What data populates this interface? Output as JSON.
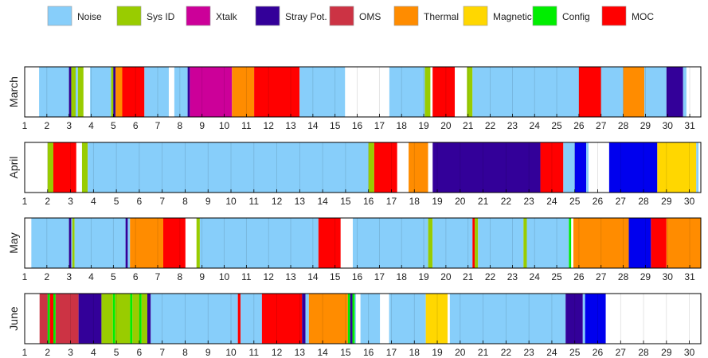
{
  "chart_data": {
    "type": "timeline",
    "categories": [
      {
        "key": "noise",
        "name": "Noise",
        "color": "#87CEFA"
      },
      {
        "key": "sysid",
        "name": "Sys ID",
        "color": "#99CC00"
      },
      {
        "key": "xtalk",
        "name": "Xtalk",
        "color": "#CC0099"
      },
      {
        "key": "stray",
        "name": "Stray Pot.",
        "color": "#330099"
      },
      {
        "key": "oms",
        "name": "OMS",
        "color": "#CC3344"
      },
      {
        "key": "thermal",
        "name": "Thermal",
        "color": "#FF8C00"
      },
      {
        "key": "magnetic",
        "name": "Magnetic",
        "color": "#FFD700"
      },
      {
        "key": "config",
        "name": "Config",
        "color": "#00EE00"
      },
      {
        "key": "moc",
        "name": "MOC",
        "color": "#FF0000"
      },
      {
        "key": "blue",
        "name": "",
        "color": "#0000EE"
      }
    ],
    "months": [
      {
        "name": "March",
        "days": 31,
        "xlim": [
          1,
          31.5
        ],
        "ticks": [
          "1",
          "2",
          "3",
          "4",
          "5",
          "6",
          "7",
          "8",
          "9",
          "10",
          "11",
          "12",
          "13",
          "14",
          "15",
          "16",
          "17",
          "18",
          "19",
          "20",
          "21",
          "22",
          "23",
          "24",
          "25",
          "26",
          "27",
          "28",
          "29",
          "30",
          "31"
        ],
        "segments": [
          [
            "noise",
            1.65,
            3.0
          ],
          [
            "stray",
            3.0,
            3.1
          ],
          [
            "sysid",
            3.1,
            3.3
          ],
          [
            "noise",
            3.3,
            3.4
          ],
          [
            "sysid",
            3.4,
            3.65
          ],
          [
            "noise",
            3.95,
            4.9
          ],
          [
            "sysid",
            4.9,
            5.0
          ],
          [
            "stray",
            5.0,
            5.1
          ],
          [
            "thermal",
            5.1,
            5.4
          ],
          [
            "moc",
            5.4,
            6.4
          ],
          [
            "noise",
            6.4,
            7.5
          ],
          [
            "noise",
            7.75,
            8.35
          ],
          [
            "stray",
            8.35,
            8.45
          ],
          [
            "xtalk",
            8.45,
            10.35
          ],
          [
            "thermal",
            10.35,
            11.35
          ],
          [
            "moc",
            11.35,
            13.4
          ],
          [
            "noise",
            13.4,
            15.45
          ],
          [
            "noise",
            17.45,
            19.05
          ],
          [
            "sysid",
            19.05,
            19.3
          ],
          [
            "moc",
            19.4,
            20.4
          ],
          [
            "sysid",
            20.95,
            21.2
          ],
          [
            "noise",
            21.2,
            26.0
          ],
          [
            "moc",
            26.0,
            27.0
          ],
          [
            "noise",
            27.0,
            28.0
          ],
          [
            "thermal",
            28.0,
            28.95
          ],
          [
            "noise",
            28.95,
            29.95
          ],
          [
            "stray",
            29.95,
            30.7
          ],
          [
            "noise",
            30.7,
            30.85
          ]
        ]
      },
      {
        "name": "April",
        "days": 30,
        "xlim": [
          1,
          30.5
        ],
        "ticks": [
          "1",
          "2",
          "3",
          "4",
          "5",
          "6",
          "7",
          "8",
          "9",
          "10",
          "11",
          "12",
          "13",
          "14",
          "15",
          "16",
          "17",
          "18",
          "19",
          "20",
          "21",
          "22",
          "23",
          "24",
          "25",
          "26",
          "27",
          "28",
          "29",
          "30"
        ],
        "segments": [
          [
            "sysid",
            2.0,
            2.25
          ],
          [
            "moc",
            2.25,
            3.25
          ],
          [
            "sysid",
            3.5,
            3.75
          ],
          [
            "noise",
            3.75,
            16.0
          ],
          [
            "sysid",
            16.0,
            16.25
          ],
          [
            "moc",
            16.25,
            17.25
          ],
          [
            "thermal",
            17.75,
            18.6
          ],
          [
            "stray",
            18.8,
            23.5
          ],
          [
            "moc",
            23.5,
            24.5
          ],
          [
            "noise",
            24.5,
            25.0
          ],
          [
            "blue",
            25.0,
            25.5
          ],
          [
            "noise",
            25.5,
            25.6
          ],
          [
            "blue",
            26.5,
            28.6
          ],
          [
            "magnetic",
            28.6,
            30.3
          ],
          [
            "noise",
            30.3,
            30.4
          ]
        ]
      },
      {
        "name": "May",
        "days": 31,
        "xlim": [
          1,
          31.5
        ],
        "ticks": [
          "1",
          "2",
          "3",
          "4",
          "5",
          "6",
          "7",
          "8",
          "9",
          "10",
          "11",
          "12",
          "13",
          "14",
          "15",
          "16",
          "17",
          "18",
          "19",
          "20",
          "21",
          "22",
          "23",
          "24",
          "25",
          "26",
          "27",
          "28",
          "29",
          "30",
          "31"
        ],
        "segments": [
          [
            "noise",
            1.3,
            3.0
          ],
          [
            "stray",
            3.0,
            3.1
          ],
          [
            "noise",
            3.1,
            3.15
          ],
          [
            "sysid",
            3.15,
            3.25
          ],
          [
            "noise",
            3.25,
            5.55
          ],
          [
            "stray",
            5.55,
            5.65
          ],
          [
            "noise",
            5.65,
            5.75
          ],
          [
            "thermal",
            5.75,
            7.25
          ],
          [
            "moc",
            7.25,
            8.25
          ],
          [
            "sysid",
            8.75,
            8.9
          ],
          [
            "noise",
            8.9,
            14.25
          ],
          [
            "moc",
            14.25,
            15.25
          ],
          [
            "noise",
            15.8,
            19.2
          ],
          [
            "sysid",
            19.2,
            19.4
          ],
          [
            "noise",
            19.4,
            21.2
          ],
          [
            "moc",
            21.2,
            21.3
          ],
          [
            "sysid",
            21.3,
            21.45
          ],
          [
            "noise",
            21.45,
            23.5
          ],
          [
            "sysid",
            23.5,
            23.65
          ],
          [
            "noise",
            23.65,
            25.55
          ],
          [
            "config",
            25.55,
            25.65
          ],
          [
            "thermal",
            25.75,
            28.25
          ],
          [
            "blue",
            28.25,
            29.25
          ],
          [
            "moc",
            29.25,
            29.95
          ],
          [
            "thermal",
            29.95,
            31.5
          ]
        ]
      },
      {
        "name": "June",
        "days": 30,
        "xlim": [
          1,
          30.5
        ],
        "ticks": [
          "1",
          "2",
          "3",
          "4",
          "5",
          "6",
          "7",
          "8",
          "9",
          "10",
          "11",
          "12",
          "13",
          "14",
          "15",
          "16",
          "17",
          "18",
          "19",
          "20",
          "21",
          "22",
          "23",
          "24",
          "25",
          "26",
          "27",
          "28",
          "29",
          "30"
        ],
        "segments": [
          [
            "oms",
            1.65,
            2.0
          ],
          [
            "config",
            2.0,
            2.1
          ],
          [
            "moc",
            2.1,
            2.25
          ],
          [
            "config",
            2.25,
            2.35
          ],
          [
            "oms",
            2.35,
            3.35
          ],
          [
            "stray",
            3.35,
            4.35
          ],
          [
            "sysid",
            4.35,
            4.85
          ],
          [
            "config",
            4.85,
            4.95
          ],
          [
            "sysid",
            4.95,
            5.6
          ],
          [
            "config",
            5.6,
            5.7
          ],
          [
            "sysid",
            5.7,
            6.0
          ],
          [
            "config",
            6.0,
            6.1
          ],
          [
            "sysid",
            6.1,
            6.35
          ],
          [
            "stray",
            6.35,
            6.5
          ],
          [
            "noise",
            6.5,
            10.3
          ],
          [
            "moc",
            10.3,
            10.42
          ],
          [
            "noise",
            10.42,
            11.35
          ],
          [
            "moc",
            11.35,
            13.1
          ],
          [
            "stray",
            13.1,
            13.25
          ],
          [
            "noise",
            13.25,
            13.4
          ],
          [
            "thermal",
            13.4,
            15.1
          ],
          [
            "config",
            15.1,
            15.2
          ],
          [
            "stray",
            15.2,
            15.3
          ],
          [
            "config",
            15.3,
            15.4
          ],
          [
            "noise",
            15.4,
            15.45
          ],
          [
            "noise",
            15.65,
            16.5
          ],
          [
            "noise",
            16.9,
            18.5
          ],
          [
            "magnetic",
            18.5,
            19.45
          ],
          [
            "noise",
            19.55,
            24.6
          ],
          [
            "stray",
            24.6,
            25.35
          ],
          [
            "noise",
            25.35,
            25.45
          ],
          [
            "blue",
            25.45,
            26.35
          ]
        ]
      }
    ],
    "grid": true,
    "legend_placement": "top"
  }
}
